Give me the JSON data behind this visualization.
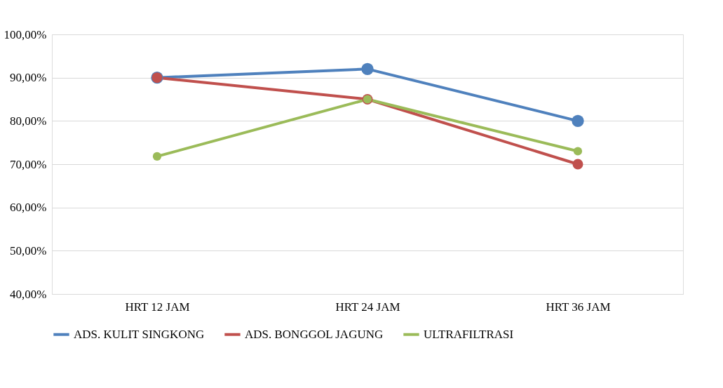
{
  "chart_data": {
    "type": "line",
    "categories": [
      "HRT 12 JAM",
      "HRT 24 JAM",
      "HRT 36 JAM"
    ],
    "series": [
      {
        "name": "ADS. KULIT SINGKONG",
        "color": "#4f81bd",
        "values": [
          90,
          92,
          80
        ]
      },
      {
        "name": "ADS. BONGGOL JAGUNG",
        "color": "#c0504d",
        "values": [
          90,
          85,
          70
        ]
      },
      {
        "name": "ULTRAFILTRASI",
        "color": "#9bbb59",
        "values": [
          71.8,
          85,
          73
        ]
      }
    ],
    "ylim": [
      40,
      100
    ],
    "yticks": [
      {
        "value": 40,
        "label": "40,00%"
      },
      {
        "value": 50,
        "label": "50,00%"
      },
      {
        "value": 60,
        "label": "60,00%"
      },
      {
        "value": 70,
        "label": "70,00%"
      },
      {
        "value": 80,
        "label": "80,00%"
      },
      {
        "value": 90,
        "label": "90,00%"
      },
      {
        "value": 100,
        "label": "100,00%"
      }
    ],
    "grid": "y",
    "legend": "bottom",
    "marker": "circle",
    "line_style": "solid"
  }
}
